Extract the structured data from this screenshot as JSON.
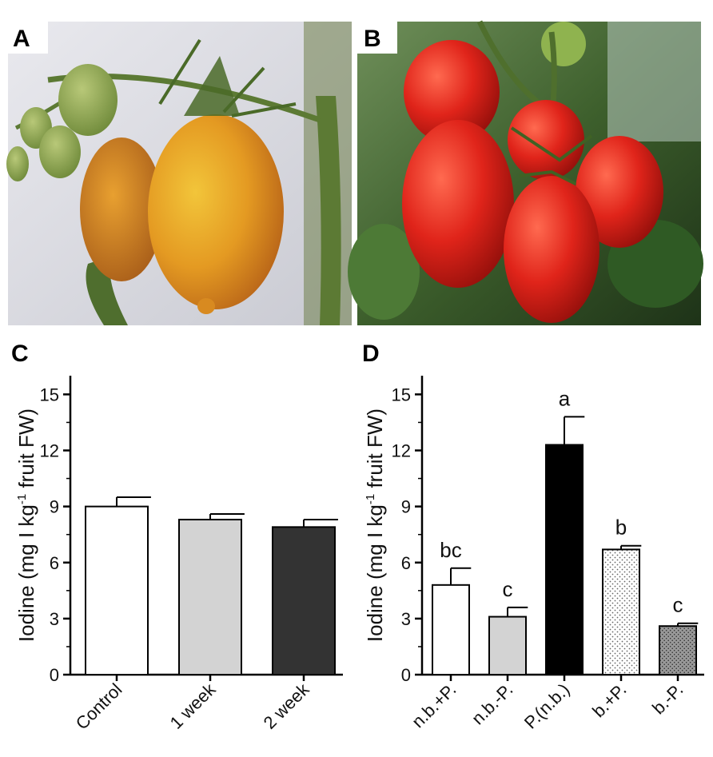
{
  "panels": {
    "a": {
      "letter": "A"
    },
    "b": {
      "letter": "B"
    },
    "c": {
      "letter": "C"
    },
    "d": {
      "letter": "D"
    }
  },
  "colors": {
    "white_bar": "#ffffff",
    "light_gray_bar": "#d3d3d3",
    "dark_gray_bar": "#333333",
    "black_bar": "#000000",
    "dotted_light_bar": "#ffffff",
    "dotted_dark_bar": "#9a9a9a",
    "ripening_tomato": "#e0a020",
    "red_tomato": "#d8201a",
    "foliage": "#3d6b2a"
  },
  "chart_data": [
    {
      "panel": "C",
      "type": "bar",
      "ylabel_main": "Iodine (mg I kg",
      "ylabel_sup": "-1",
      "ylabel_tail": " fruit FW)",
      "ylim": [
        0,
        16
      ],
      "yticks": [
        0,
        3,
        6,
        9,
        12,
        15
      ],
      "categories": [
        "Control",
        "1 week",
        "2 week"
      ],
      "values": [
        9.0,
        8.3,
        7.9
      ],
      "errors": [
        0.5,
        0.3,
        0.4
      ],
      "bar_styles": [
        "white",
        "light-gray",
        "dark-gray"
      ],
      "grid": false
    },
    {
      "panel": "D",
      "type": "bar",
      "ylabel_main": "Iodine (mg I kg",
      "ylabel_sup": "-1",
      "ylabel_tail": " fruit FW)",
      "ylim": [
        0,
        16
      ],
      "yticks": [
        0,
        3,
        6,
        9,
        12,
        15
      ],
      "categories": [
        "n.b.+P.",
        "n.b.-P.",
        "P.(n.b.)",
        "b.+P.",
        "b.-P."
      ],
      "values": [
        4.8,
        3.1,
        12.3,
        6.7,
        2.6
      ],
      "errors": [
        0.9,
        0.5,
        1.5,
        0.2,
        0.15
      ],
      "significance": [
        "bc",
        "c",
        "a",
        "b",
        "c"
      ],
      "bar_styles": [
        "white",
        "light-gray",
        "black",
        "dotted-light",
        "dotted-dark"
      ],
      "grid": false
    }
  ]
}
